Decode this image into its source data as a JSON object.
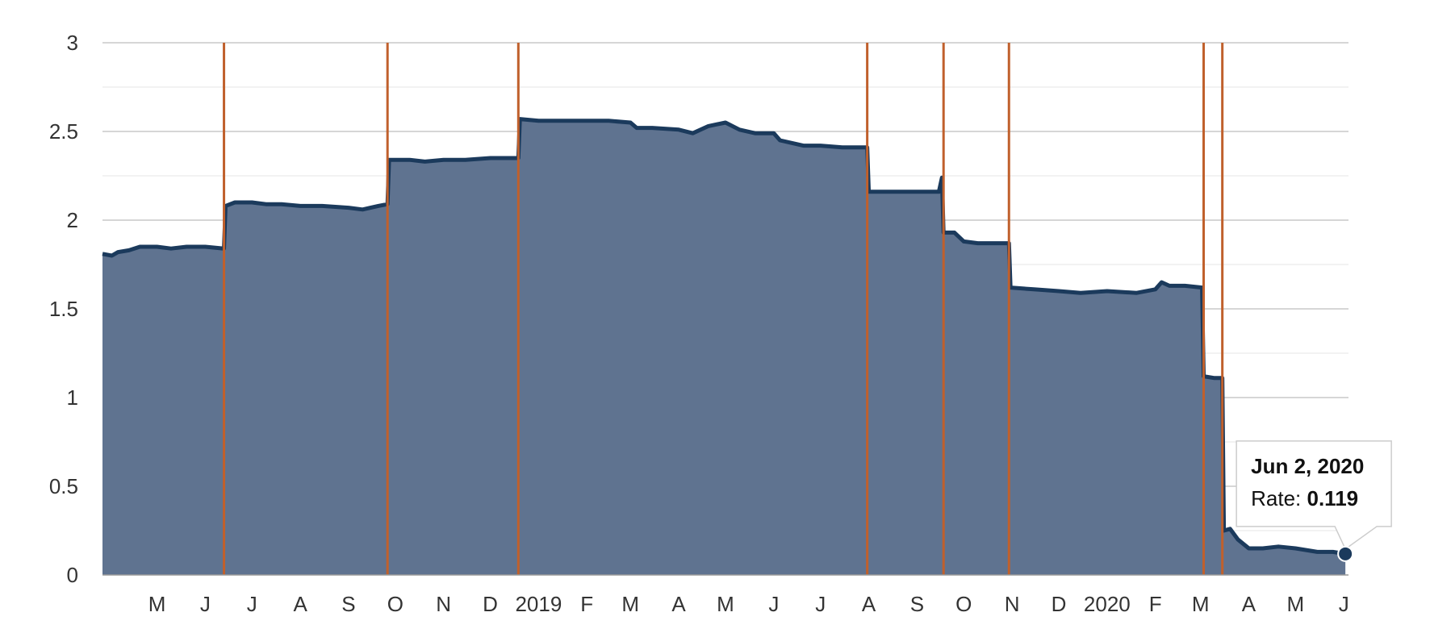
{
  "chart_data": {
    "type": "area",
    "title": "",
    "xlabel": "",
    "ylabel": "",
    "ylim": [
      0,
      3
    ],
    "xlim": [
      "2018-03-27",
      "2020-06-04"
    ],
    "y_ticks": [
      "0",
      "0.5",
      "1",
      "1.5",
      "2",
      "2.5",
      "3"
    ],
    "grid": true,
    "x_ticks": [
      {
        "date": "2018-05-01",
        "label": "M"
      },
      {
        "date": "2018-06-01",
        "label": "J"
      },
      {
        "date": "2018-07-01",
        "label": "J"
      },
      {
        "date": "2018-08-01",
        "label": "A"
      },
      {
        "date": "2018-09-01",
        "label": "S"
      },
      {
        "date": "2018-10-01",
        "label": "O"
      },
      {
        "date": "2018-11-01",
        "label": "N"
      },
      {
        "date": "2018-12-01",
        "label": "D"
      },
      {
        "date": "2019-01-01",
        "label": "2019"
      },
      {
        "date": "2019-02-01",
        "label": "F"
      },
      {
        "date": "2019-03-01",
        "label": "M"
      },
      {
        "date": "2019-04-01",
        "label": "A"
      },
      {
        "date": "2019-05-01",
        "label": "M"
      },
      {
        "date": "2019-06-01",
        "label": "J"
      },
      {
        "date": "2019-07-01",
        "label": "J"
      },
      {
        "date": "2019-08-01",
        "label": "A"
      },
      {
        "date": "2019-09-01",
        "label": "S"
      },
      {
        "date": "2019-10-01",
        "label": "O"
      },
      {
        "date": "2019-11-01",
        "label": "N"
      },
      {
        "date": "2019-12-01",
        "label": "D"
      },
      {
        "date": "2020-01-01",
        "label": "2020"
      },
      {
        "date": "2020-02-01",
        "label": "F"
      },
      {
        "date": "2020-03-01",
        "label": "M"
      },
      {
        "date": "2020-04-01",
        "label": "A"
      },
      {
        "date": "2020-05-01",
        "label": "M"
      },
      {
        "date": "2020-06-01",
        "label": "J"
      }
    ],
    "series": [
      {
        "points": [
          [
            "2018-03-27",
            1.81
          ],
          [
            "2018-04-02",
            1.8
          ],
          [
            "2018-04-06",
            1.82
          ],
          [
            "2018-04-13",
            1.83
          ],
          [
            "2018-04-20",
            1.85
          ],
          [
            "2018-05-01",
            1.85
          ],
          [
            "2018-05-10",
            1.84
          ],
          [
            "2018-05-20",
            1.85
          ],
          [
            "2018-06-01",
            1.85
          ],
          [
            "2018-06-13",
            1.84
          ],
          [
            "2018-06-14",
            2.08
          ],
          [
            "2018-06-20",
            2.1
          ],
          [
            "2018-07-01",
            2.1
          ],
          [
            "2018-07-10",
            2.09
          ],
          [
            "2018-07-20",
            2.09
          ],
          [
            "2018-08-01",
            2.08
          ],
          [
            "2018-08-15",
            2.08
          ],
          [
            "2018-09-01",
            2.07
          ],
          [
            "2018-09-10",
            2.06
          ],
          [
            "2018-09-20",
            2.08
          ],
          [
            "2018-09-26",
            2.09
          ],
          [
            "2018-09-27",
            2.34
          ],
          [
            "2018-10-10",
            2.34
          ],
          [
            "2018-10-20",
            2.33
          ],
          [
            "2018-11-01",
            2.34
          ],
          [
            "2018-11-15",
            2.34
          ],
          [
            "2018-12-01",
            2.35
          ],
          [
            "2018-12-19",
            2.35
          ],
          [
            "2018-12-20",
            2.57
          ],
          [
            "2019-01-01",
            2.56
          ],
          [
            "2019-01-15",
            2.56
          ],
          [
            "2019-02-01",
            2.56
          ],
          [
            "2019-02-15",
            2.56
          ],
          [
            "2019-03-01",
            2.55
          ],
          [
            "2019-03-05",
            2.52
          ],
          [
            "2019-03-15",
            2.52
          ],
          [
            "2019-04-01",
            2.51
          ],
          [
            "2019-04-10",
            2.49
          ],
          [
            "2019-04-20",
            2.53
          ],
          [
            "2019-05-01",
            2.55
          ],
          [
            "2019-05-10",
            2.51
          ],
          [
            "2019-05-20",
            2.49
          ],
          [
            "2019-06-01",
            2.49
          ],
          [
            "2019-06-05",
            2.45
          ],
          [
            "2019-06-20",
            2.42
          ],
          [
            "2019-07-01",
            2.42
          ],
          [
            "2019-07-15",
            2.41
          ],
          [
            "2019-07-31",
            2.41
          ],
          [
            "2019-08-01",
            2.16
          ],
          [
            "2019-08-15",
            2.16
          ],
          [
            "2019-09-01",
            2.16
          ],
          [
            "2019-09-15",
            2.16
          ],
          [
            "2019-09-17",
            2.24
          ],
          [
            "2019-09-18",
            1.93
          ],
          [
            "2019-09-25",
            1.93
          ],
          [
            "2019-10-01",
            1.88
          ],
          [
            "2019-10-10",
            1.87
          ],
          [
            "2019-10-20",
            1.87
          ],
          [
            "2019-10-30",
            1.87
          ],
          [
            "2019-10-31",
            1.62
          ],
          [
            "2019-11-15",
            1.61
          ],
          [
            "2019-12-01",
            1.6
          ],
          [
            "2019-12-15",
            1.59
          ],
          [
            "2020-01-01",
            1.6
          ],
          [
            "2020-01-20",
            1.59
          ],
          [
            "2020-02-01",
            1.61
          ],
          [
            "2020-02-05",
            1.65
          ],
          [
            "2020-02-10",
            1.63
          ],
          [
            "2020-02-20",
            1.63
          ],
          [
            "2020-03-02",
            1.62
          ],
          [
            "2020-03-03",
            1.12
          ],
          [
            "2020-03-10",
            1.11
          ],
          [
            "2020-03-15",
            1.11
          ],
          [
            "2020-03-16",
            0.25
          ],
          [
            "2020-03-20",
            0.26
          ],
          [
            "2020-03-25",
            0.2
          ],
          [
            "2020-04-01",
            0.15
          ],
          [
            "2020-04-10",
            0.15
          ],
          [
            "2020-04-20",
            0.16
          ],
          [
            "2020-05-01",
            0.15
          ],
          [
            "2020-05-15",
            0.13
          ],
          [
            "2020-05-25",
            0.13
          ],
          [
            "2020-06-02",
            0.119
          ]
        ]
      }
    ],
    "event_lines": [
      "2018-06-13",
      "2018-09-26",
      "2018-12-19",
      "2019-07-31",
      "2019-09-18",
      "2019-10-30",
      "2020-03-03",
      "2020-03-15"
    ],
    "tooltip": {
      "date": "Jun 2, 2020",
      "label": "Rate: ",
      "value": "0.119",
      "x": "2020-06-02",
      "y": 0.119
    },
    "colors": {
      "area_fill": "#5f7390",
      "line": "#1b3a5c",
      "event_line": "#c0602c",
      "grid_major": "#c8c8c8",
      "grid_minor": "#e6e6e6"
    }
  }
}
